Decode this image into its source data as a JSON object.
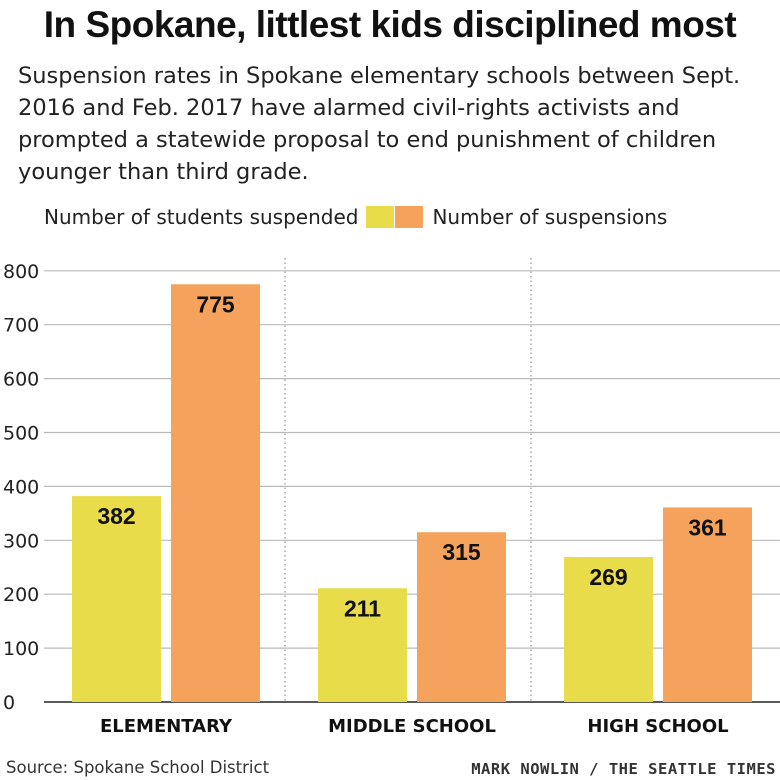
{
  "title": "In Spokane, littlest kids disciplined most",
  "subtitle": "Suspension rates in Spokane elementary schools between Sept. 2016 and Feb. 2017 have alarmed civil-rights activists and prompted a statewide proposal to end punishment of children younger than third grade.",
  "source": "Source: Spokane School District",
  "credit": "MARK NOWLIN / THE SEATTLE TIMES",
  "chart_data": {
    "type": "bar",
    "categories": [
      "ELEMENTARY",
      "MIDDLE SCHOOL",
      "HIGH SCHOOL"
    ],
    "series": [
      {
        "name": "Number of students suspended",
        "color": "#e8dc4a",
        "values": [
          382,
          211,
          269
        ]
      },
      {
        "name": "Number of suspensions",
        "color": "#f5a35c",
        "values": [
          775,
          315,
          361
        ]
      }
    ],
    "yticks": [
      0,
      100,
      200,
      300,
      400,
      500,
      600,
      700,
      800
    ],
    "ylim": [
      0,
      800
    ],
    "grid": true,
    "legend_position": "top-left",
    "data_labels": true
  }
}
